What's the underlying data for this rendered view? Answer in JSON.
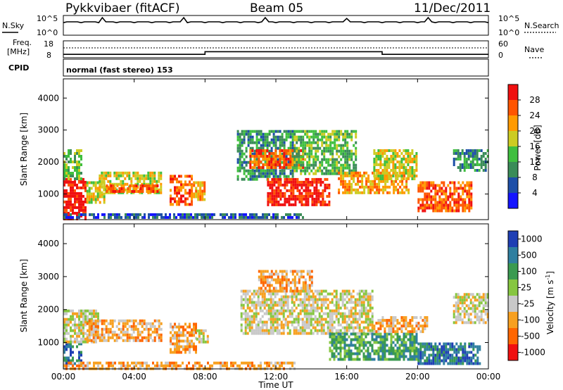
{
  "header": {
    "station": "Pykkvibaer (fitACF)",
    "beam": "Beam 05",
    "date": "11/Dec/2011"
  },
  "noise_panel": {
    "left_label": "N.Sky",
    "right_label": "N.Search",
    "left_ticks": [
      "10^5",
      "10^0"
    ],
    "right_ticks": [
      "10^5",
      "10^0"
    ]
  },
  "freq_panel": {
    "left_label_line1": "Freq.",
    "left_label_line2": "[MHz]",
    "right_label": "Nave",
    "left_ticks": [
      "18",
      "8"
    ],
    "right_ticks": [
      "60",
      "0"
    ],
    "freq_steps": [
      {
        "t": 0,
        "mhz": 10.0
      },
      {
        "t": 8.0,
        "mhz": 10.0
      },
      {
        "t": 8.0,
        "mhz": 11.6
      },
      {
        "t": 18.0,
        "mhz": 11.6
      },
      {
        "t": 18.0,
        "mhz": 10.0
      },
      {
        "t": 24.0,
        "mhz": 10.0
      }
    ]
  },
  "cpid_panel": {
    "label": "CPID",
    "mode_text": "normal (fast stereo) 153"
  },
  "x_axis": {
    "label": "Time UT",
    "ticks": [
      "00:00",
      "04:00",
      "08:00",
      "12:00",
      "16:00",
      "20:00",
      "00:00"
    ]
  },
  "chart_data": [
    {
      "type": "heatmap",
      "ylabel": "Slant Range [km]",
      "ylim": [
        200,
        4600
      ],
      "yticks": [
        "1000",
        "2000",
        "3000",
        "4000"
      ],
      "xlim": [
        0,
        24
      ],
      "colorbar_label": "Power [dB]",
      "colorbar_ticks": [
        "4",
        "8",
        "12",
        "16",
        "20",
        "24",
        "28"
      ],
      "colors": [
        "#1414ff",
        "#1d4fa8",
        "#3a8c58",
        "#3fbf3f",
        "#cccc22",
        "#ff9a00",
        "#ff5500",
        "#f01010"
      ],
      "regions": [
        {
          "t0": 0.0,
          "t1": 1.3,
          "r0": 250,
          "r1": 1500,
          "lvl": 7
        },
        {
          "t0": 0.0,
          "t1": 1.0,
          "r0": 1500,
          "r1": 2400,
          "lvl": 3
        },
        {
          "t0": 1.3,
          "t1": 2.3,
          "r0": 700,
          "r1": 1400,
          "lvl": 4
        },
        {
          "t0": 2.0,
          "t1": 5.5,
          "r0": 1000,
          "r1": 1700,
          "lvl": 4
        },
        {
          "t0": 2.4,
          "t1": 5.3,
          "r0": 1050,
          "r1": 1300,
          "lvl": 6
        },
        {
          "t0": 6.0,
          "t1": 7.2,
          "r0": 700,
          "r1": 1600,
          "lvl": 6
        },
        {
          "t0": 7.2,
          "t1": 8.0,
          "r0": 800,
          "r1": 1400,
          "lvl": 5
        },
        {
          "t0": 9.8,
          "t1": 13.0,
          "r0": 1500,
          "r1": 3000,
          "lvl": 2
        },
        {
          "t0": 10.5,
          "t1": 13.5,
          "r0": 1800,
          "r1": 2400,
          "lvl": 6
        },
        {
          "t0": 11.5,
          "t1": 15.0,
          "r0": 700,
          "r1": 1500,
          "lvl": 7
        },
        {
          "t0": 13.0,
          "t1": 16.5,
          "r0": 1600,
          "r1": 3000,
          "lvl": 3
        },
        {
          "t0": 15.5,
          "t1": 19.5,
          "r0": 1000,
          "r1": 1700,
          "lvl": 5
        },
        {
          "t0": 17.5,
          "t1": 20.0,
          "r0": 1500,
          "r1": 2400,
          "lvl": 4
        },
        {
          "t0": 20.0,
          "t1": 23.0,
          "r0": 500,
          "r1": 1400,
          "lvl": 6
        },
        {
          "t0": 22.0,
          "t1": 24.0,
          "r0": 1700,
          "r1": 2400,
          "lvl": 2
        },
        {
          "t0": 0.0,
          "t1": 13.5,
          "r0": 230,
          "r1": 400,
          "lvl": 1
        }
      ]
    },
    {
      "type": "heatmap",
      "ylabel": "Slant Range [km]",
      "ylim": [
        200,
        4600
      ],
      "yticks": [
        "1000",
        "2000",
        "3000",
        "4000"
      ],
      "xlim": [
        0,
        24
      ],
      "colorbar_label": "Velocity [m s^-1]",
      "colorbar_ticks": [
        "1000",
        "500",
        "100",
        "25",
        "-25",
        "-100",
        "-500",
        "-1000"
      ],
      "colors": [
        "#1f3fb4",
        "#2f7fa0",
        "#3a9a50",
        "#86c640",
        "#c8c8c8",
        "#f7a020",
        "#ff6600",
        "#f01010"
      ],
      "regions": [
        {
          "t0": 0.0,
          "t1": 1.0,
          "r0": 400,
          "r1": 1000,
          "lvl": 1
        },
        {
          "t0": 0.0,
          "t1": 2.0,
          "r0": 1000,
          "r1": 2000,
          "lvl": 4
        },
        {
          "t0": 1.3,
          "t1": 5.5,
          "r0": 1100,
          "r1": 1700,
          "lvl": 5
        },
        {
          "t0": 6.0,
          "t1": 7.5,
          "r0": 700,
          "r1": 1600,
          "lvl": 5
        },
        {
          "t0": 7.5,
          "t1": 8.2,
          "r0": 1000,
          "r1": 1400,
          "lvl": 4
        },
        {
          "t0": 10.0,
          "t1": 17.5,
          "r0": 1300,
          "r1": 2600,
          "lvl": 4
        },
        {
          "t0": 11.0,
          "t1": 14.0,
          "r0": 2600,
          "r1": 3200,
          "lvl": 5
        },
        {
          "t0": 15.0,
          "t1": 20.0,
          "r0": 500,
          "r1": 1300,
          "lvl": 2
        },
        {
          "t0": 17.5,
          "t1": 20.5,
          "r0": 1300,
          "r1": 1800,
          "lvl": 5
        },
        {
          "t0": 20.0,
          "t1": 23.5,
          "r0": 400,
          "r1": 1000,
          "lvl": 1
        },
        {
          "t0": 22.0,
          "t1": 24.0,
          "r0": 1600,
          "r1": 2500,
          "lvl": 4
        },
        {
          "t0": 0.0,
          "t1": 13.0,
          "r0": 230,
          "r1": 420,
          "lvl": 5
        }
      ]
    }
  ]
}
